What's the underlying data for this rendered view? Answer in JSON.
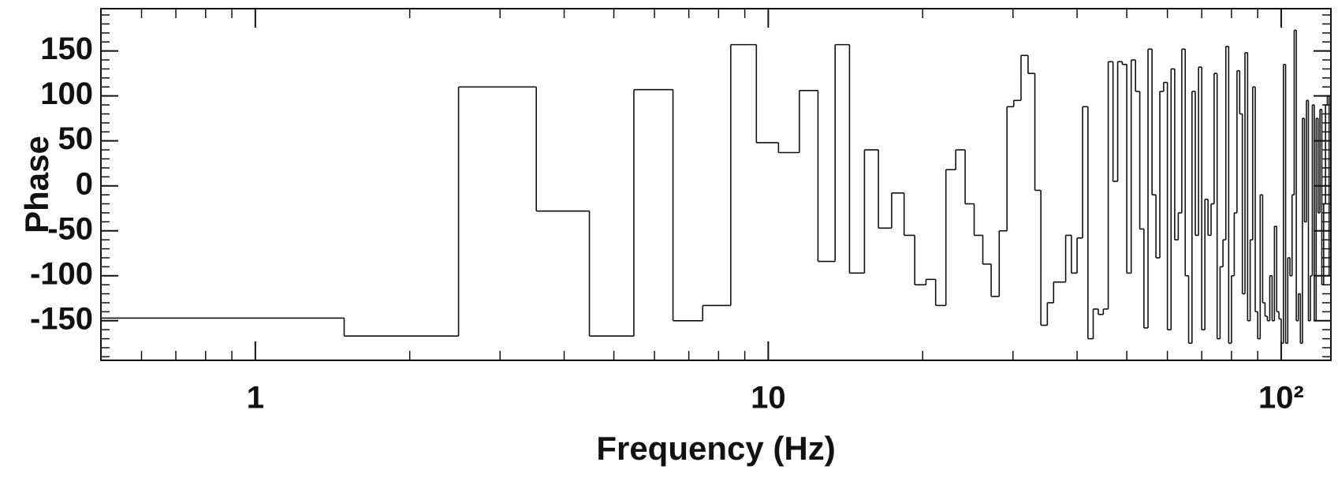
{
  "chart_data": {
    "type": "step",
    "color": "#111111",
    "log_x": true,
    "xlabel": "Frequency (Hz)",
    "ylabel": "Phase",
    "xlim": [
      0.5,
      125
    ],
    "ylim": [
      -194,
      197
    ],
    "xticks": [
      1,
      10,
      {
        "value": 100,
        "label": "10²"
      }
    ],
    "yticks": [
      -150,
      -100,
      -50,
      0,
      50,
      100,
      150
    ],
    "x": [
      0.5,
      1.49,
      2.49,
      3.53,
      4.48,
      5.47,
      6.52,
      7.45,
      8.45,
      9.48,
      10.47,
      11.5,
      12.5,
      13.5,
      14.4,
      15.4,
      16.4,
      17.4,
      18.4,
      19.3,
      20.3,
      21.2,
      22.2,
      23.2,
      24.2,
      25.2,
      26.2,
      27.2,
      28.2,
      29.2,
      30.1,
      31.1,
      32.1,
      33.1,
      34,
      35,
      36,
      38,
      39,
      40,
      41,
      42,
      43,
      44,
      45,
      46,
      47,
      48,
      49,
      50,
      51,
      52,
      53,
      54,
      55,
      56,
      57,
      58,
      59,
      60,
      61,
      62,
      63,
      64,
      65,
      66,
      67,
      68,
      69,
      70,
      71,
      72,
      73,
      74,
      75,
      76,
      77,
      78,
      79,
      80,
      81,
      82,
      83,
      84,
      85,
      86,
      87,
      88,
      89,
      90,
      91,
      92,
      93,
      94,
      95,
      96,
      97,
      98,
      99,
      100,
      101,
      102,
      103,
      104,
      105,
      106,
      107,
      108,
      109,
      110,
      111,
      112,
      113,
      114,
      115,
      116,
      117,
      118,
      119,
      120,
      121,
      122,
      123,
      124
    ],
    "values": [
      -147,
      -167,
      110,
      -28,
      -167,
      107,
      -150,
      -133,
      157,
      48,
      37,
      106,
      -84,
      157,
      -97,
      40,
      -47,
      -8,
      -55,
      -110,
      -104,
      -133,
      18,
      40,
      -20,
      -55,
      -87,
      -123,
      -50,
      88,
      95,
      145,
      125,
      -5,
      -155,
      -130,
      -107,
      -55,
      -97,
      -58,
      88,
      -170,
      -137,
      -143,
      -137,
      138,
      5,
      138,
      135,
      -97,
      140,
      105,
      -48,
      -158,
      152,
      -10,
      -80,
      105,
      115,
      -160,
      130,
      -60,
      -30,
      152,
      -100,
      -175,
      105,
      -55,
      132,
      -160,
      -15,
      -55,
      -20,
      125,
      -170,
      -90,
      -60,
      155,
      -175,
      -100,
      -30,
      128,
      80,
      -120,
      148,
      -150,
      -60,
      110,
      -140,
      -170,
      -10,
      -130,
      -145,
      -150,
      -100,
      -150,
      -45,
      -140,
      -148,
      -175,
      135,
      -175,
      -80,
      -100,
      -10,
      173,
      -150,
      -120,
      -175,
      75,
      -40,
      95,
      -150,
      -100,
      90,
      -150,
      75,
      -30,
      85,
      -110,
      -20,
      90,
      100,
      -100
    ]
  }
}
